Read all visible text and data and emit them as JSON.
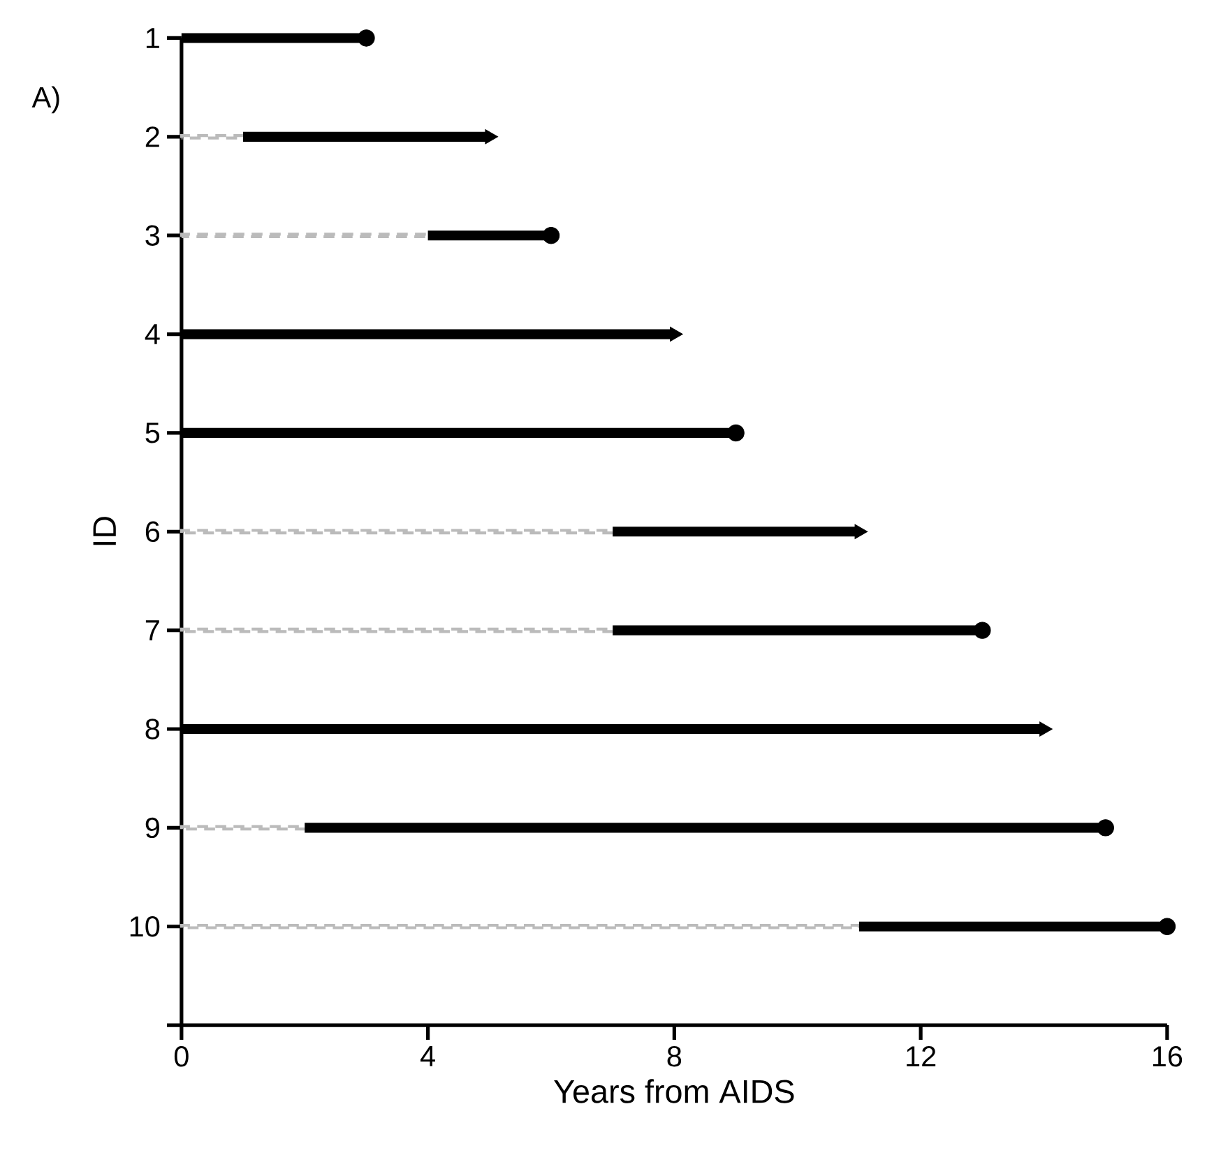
{
  "chart_data": {
    "type": "bar",
    "orientation": "horizontal",
    "stacked": true,
    "categories": [
      "1",
      "2",
      "3",
      "4",
      "5",
      "6",
      "7",
      "8",
      "9",
      "10",
      null
    ],
    "series": [
      {
        "type": "bar",
        "color": "#bbbbbb",
        "line_style": "dashed",
        "values": [
          0,
          1,
          4,
          0,
          0,
          7,
          7,
          0,
          2,
          11,
          null
        ]
      },
      {
        "type": "bar",
        "color": "#000000",
        "line_style": "solid",
        "values": [
          3,
          4,
          2,
          8,
          9,
          4,
          6,
          14,
          13,
          5,
          null
        ]
      },
      {
        "type": "scatter",
        "color": "#000000",
        "marker": "circle",
        "values": [
          3,
          null,
          6,
          null,
          9,
          null,
          13,
          null,
          15,
          16,
          null
        ]
      },
      {
        "type": "scatter",
        "color": "#000000",
        "marker": "triangle",
        "values": [
          null,
          5,
          null,
          8,
          null,
          11,
          null,
          14,
          null,
          null,
          null
        ]
      }
    ],
    "xlim": [
      0,
      16
    ],
    "xticks": [
      0,
      4,
      8,
      12,
      16
    ],
    "xlabel": "Years from AIDS",
    "ylabel": "ID",
    "annotations": [
      "A)"
    ]
  }
}
